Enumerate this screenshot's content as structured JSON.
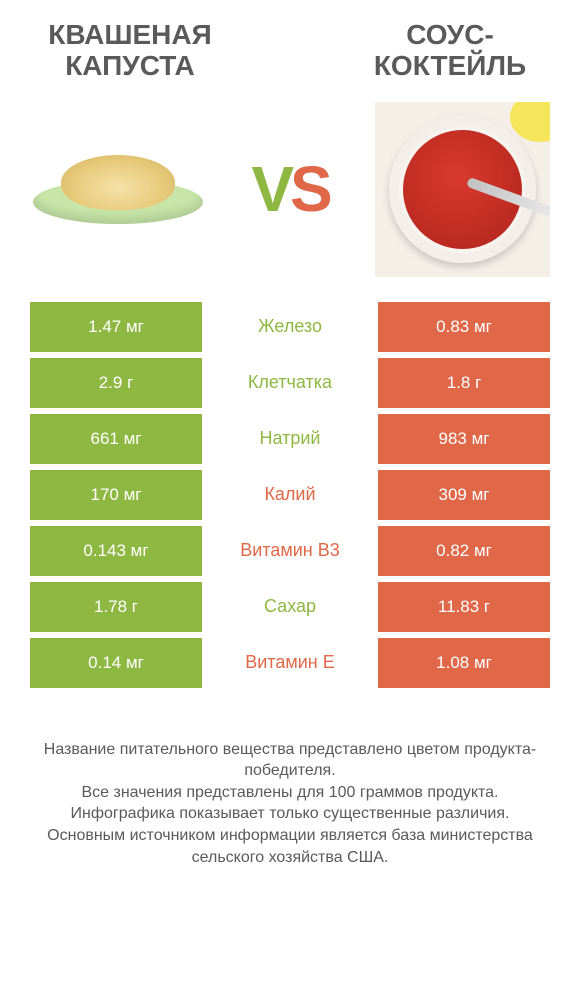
{
  "colors": {
    "green": "#8fb843",
    "red": "#e06848",
    "text": "#5a5a5a",
    "bg": "#ffffff"
  },
  "header": {
    "left_title": "КВАШЕНАЯ КАПУСТА",
    "right_title": "СОУС-КОКТЕЙЛЬ",
    "vs_v": "V",
    "vs_s": "S"
  },
  "rows": [
    {
      "left": "1.47 мг",
      "label": "Железо",
      "winner": "green",
      "right": "0.83 мг"
    },
    {
      "left": "2.9 г",
      "label": "Клетчатка",
      "winner": "green",
      "right": "1.8 г"
    },
    {
      "left": "661 мг",
      "label": "Натрий",
      "winner": "green",
      "right": "983 мг"
    },
    {
      "left": "170 мг",
      "label": "Калий",
      "winner": "red",
      "right": "309 мг"
    },
    {
      "left": "0.143 мг",
      "label": "Витамин B3",
      "winner": "red",
      "right": "0.82 мг"
    },
    {
      "left": "1.78 г",
      "label": "Сахар",
      "winner": "green",
      "right": "11.83 г"
    },
    {
      "left": "0.14 мг",
      "label": "Витамин E",
      "winner": "red",
      "right": "1.08 мг"
    }
  ],
  "footer": {
    "line1": "Название питательного вещества представлено цветом продукта-победителя.",
    "line2": "Все значения представлены для 100 граммов продукта.",
    "line3": "Инфографика показывает только существенные различия.",
    "line4": "Основным источником информации является база министерства сельского хозяйства США."
  }
}
